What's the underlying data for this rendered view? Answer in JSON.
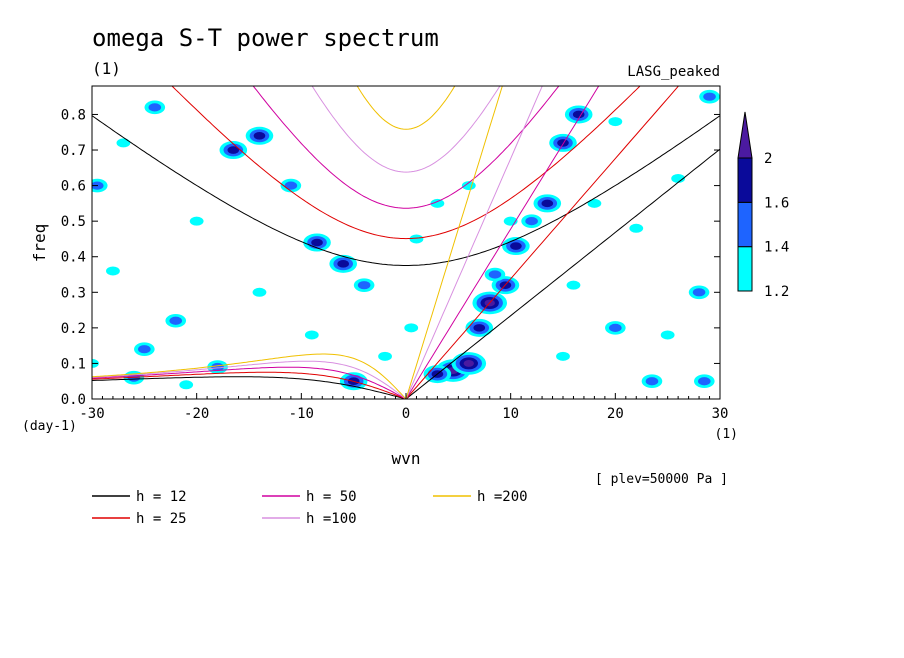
{
  "chart_data": {
    "type": "heatmap",
    "title": "omega S-T power spectrum",
    "subtitle": "(1)",
    "model_label": "LASG_peaked",
    "xlabel": "wvn",
    "ylabel": "freq",
    "x_unit_label": "(1)",
    "y_unit_label": "(day-1)",
    "level_note": "[ plev=50000 Pa ]",
    "xlim": [
      -30,
      30
    ],
    "ylim": [
      0,
      0.88
    ],
    "xticks": [
      -30,
      -20,
      -10,
      0,
      10,
      20,
      30
    ],
    "xtick_labels": [
      "-30",
      "-20",
      "-10",
      "0",
      "10",
      "20",
      "30"
    ],
    "yticks": [
      0,
      0.1,
      0.2,
      0.3,
      0.4,
      0.5,
      0.6,
      0.7,
      0.8
    ],
    "ytick_labels": [
      "0.0",
      "0.1",
      "0.2",
      "0.3",
      "0.4",
      "0.5",
      "0.6",
      "0.7",
      "0.8"
    ],
    "colorbar": {
      "levels": [
        1.2,
        1.4,
        1.6,
        2
      ],
      "labels": [
        "1.2",
        "1.4",
        "1.6",
        "2"
      ],
      "colors": [
        "#00ffff",
        "#1e64ff",
        "#0a0a9a",
        "#4b1aa0"
      ]
    },
    "dispersion_curves": [
      {
        "name": "h = 12",
        "h": 12,
        "color": "#000000"
      },
      {
        "name": "h = 25",
        "h": 25,
        "color": "#e00000"
      },
      {
        "name": "h = 50",
        "h": 50,
        "color": "#d000a0"
      },
      {
        "name": "h =100",
        "h": 100,
        "color": "#d890e0"
      },
      {
        "name": "h =200",
        "h": 200,
        "color": "#f0c000"
      }
    ],
    "power_blobs": [
      {
        "x": 4.5,
        "y": 0.08,
        "level": 4
      },
      {
        "x": 6.0,
        "y": 0.1,
        "level": 4
      },
      {
        "x": 8.0,
        "y": 0.27,
        "level": 4
      },
      {
        "x": 9.5,
        "y": 0.32,
        "level": 3
      },
      {
        "x": 10.5,
        "y": 0.43,
        "level": 3
      },
      {
        "x": 13.5,
        "y": 0.55,
        "level": 3
      },
      {
        "x": 15.0,
        "y": 0.72,
        "level": 3
      },
      {
        "x": 16.5,
        "y": 0.8,
        "level": 3
      },
      {
        "x": 3.0,
        "y": 0.07,
        "level": 3
      },
      {
        "x": 7.0,
        "y": 0.2,
        "level": 3
      },
      {
        "x": 8.5,
        "y": 0.35,
        "level": 2
      },
      {
        "x": 12.0,
        "y": 0.5,
        "level": 2
      },
      {
        "x": -16.5,
        "y": 0.7,
        "level": 3
      },
      {
        "x": -14.0,
        "y": 0.74,
        "level": 3
      },
      {
        "x": -8.5,
        "y": 0.44,
        "level": 3
      },
      {
        "x": -6.0,
        "y": 0.38,
        "level": 3
      },
      {
        "x": -4.0,
        "y": 0.32,
        "level": 2
      },
      {
        "x": -5.0,
        "y": 0.05,
        "level": 3
      },
      {
        "x": -25.0,
        "y": 0.14,
        "level": 2
      },
      {
        "x": -22.0,
        "y": 0.22,
        "level": 2
      },
      {
        "x": -24.0,
        "y": 0.82,
        "level": 2
      },
      {
        "x": -11.0,
        "y": 0.6,
        "level": 2
      },
      {
        "x": -29.5,
        "y": 0.6,
        "level": 2
      },
      {
        "x": -28.0,
        "y": 0.36,
        "level": 1
      },
      {
        "x": -20.0,
        "y": 0.5,
        "level": 1
      },
      {
        "x": -18.0,
        "y": 0.09,
        "level": 2
      },
      {
        "x": -9.0,
        "y": 0.18,
        "level": 1
      },
      {
        "x": 3.0,
        "y": 0.55,
        "level": 1
      },
      {
        "x": 6.0,
        "y": 0.6,
        "level": 1
      },
      {
        "x": 10.0,
        "y": 0.5,
        "level": 1
      },
      {
        "x": 15.0,
        "y": 0.12,
        "level": 1
      },
      {
        "x": 20.0,
        "y": 0.2,
        "level": 2
      },
      {
        "x": 23.5,
        "y": 0.05,
        "level": 2
      },
      {
        "x": 28.5,
        "y": 0.05,
        "level": 2
      },
      {
        "x": 28.0,
        "y": 0.3,
        "level": 2
      },
      {
        "x": 25.0,
        "y": 0.18,
        "level": 1
      },
      {
        "x": 22.0,
        "y": 0.48,
        "level": 1
      },
      {
        "x": 26.0,
        "y": 0.62,
        "level": 1
      },
      {
        "x": 29.0,
        "y": 0.85,
        "level": 2
      },
      {
        "x": 20.0,
        "y": 0.78,
        "level": 1
      },
      {
        "x": 16.0,
        "y": 0.32,
        "level": 1
      },
      {
        "x": 0.5,
        "y": 0.2,
        "level": 1
      },
      {
        "x": -2.0,
        "y": 0.12,
        "level": 1
      },
      {
        "x": -14.0,
        "y": 0.3,
        "level": 1
      },
      {
        "x": -26.0,
        "y": 0.06,
        "level": 2
      },
      {
        "x": -21.0,
        "y": 0.04,
        "level": 1
      },
      {
        "x": -30.0,
        "y": 0.1,
        "level": 1
      },
      {
        "x": -27.0,
        "y": 0.72,
        "level": 1
      },
      {
        "x": 1.0,
        "y": 0.45,
        "level": 1
      },
      {
        "x": 18.0,
        "y": 0.55,
        "level": 1
      }
    ]
  }
}
